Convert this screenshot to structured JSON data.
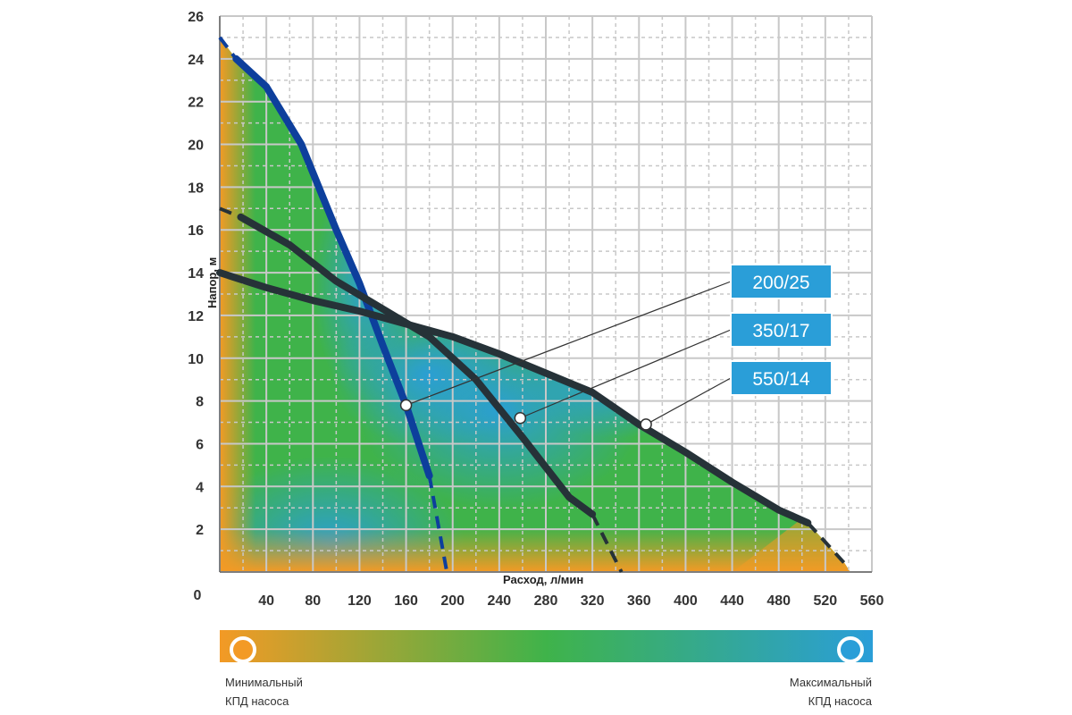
{
  "chart_data": {
    "type": "line",
    "xlabel": "Расход, л/мин",
    "ylabel": "Напор, м",
    "xlim": [
      0,
      560
    ],
    "ylim": [
      0,
      26
    ],
    "x_ticks": [
      "0",
      "40",
      "80",
      "120",
      "160",
      "200",
      "240",
      "280",
      "320",
      "360",
      "400",
      "440",
      "480",
      "520",
      "560"
    ],
    "y_ticks": [
      "2",
      "4",
      "6",
      "8",
      "10",
      "12",
      "14",
      "16",
      "18",
      "20",
      "22",
      "24",
      "26"
    ],
    "grid": true,
    "series": [
      {
        "name": "200/25",
        "color": "#0d3f9c",
        "solid": [
          [
            14,
            24
          ],
          [
            40,
            22.7
          ],
          [
            70,
            20
          ],
          [
            100,
            16
          ],
          [
            120,
            13.5
          ],
          [
            140,
            10.6
          ],
          [
            160,
            7.8
          ],
          [
            180,
            4.5
          ]
        ],
        "dashed": [
          [
            0,
            25
          ],
          [
            14,
            24
          ],
          [
            180,
            4.5
          ],
          [
            195,
            0
          ]
        ],
        "marker": [
          160,
          7.8
        ]
      },
      {
        "name": "350/17",
        "color": "#263238",
        "solid": [
          [
            18,
            16.6
          ],
          [
            60,
            15.3
          ],
          [
            100,
            13.6
          ],
          [
            140,
            12.3
          ],
          [
            180,
            11.0
          ],
          [
            220,
            9.0
          ],
          [
            260,
            6.3
          ],
          [
            300,
            3.5
          ],
          [
            320,
            2.7
          ]
        ],
        "dashed": [
          [
            0,
            17
          ],
          [
            18,
            16.6
          ],
          [
            320,
            2.7
          ],
          [
            345,
            0
          ]
        ],
        "marker": [
          258,
          7.2
        ]
      },
      {
        "name": "550/14",
        "color": "#263238",
        "solid": [
          [
            0,
            14
          ],
          [
            40,
            13.3
          ],
          [
            80,
            12.7
          ],
          [
            120,
            12.2
          ],
          [
            160,
            11.6
          ],
          [
            200,
            11.0
          ],
          [
            240,
            10.2
          ],
          [
            280,
            9.3
          ],
          [
            320,
            8.4
          ],
          [
            360,
            6.9
          ],
          [
            400,
            5.6
          ],
          [
            440,
            4.2
          ],
          [
            480,
            2.9
          ],
          [
            505,
            2.3
          ]
        ],
        "dashed": [
          [
            505,
            2.3
          ],
          [
            540,
            0.2
          ]
        ],
        "marker": [
          366,
          6.9
        ]
      }
    ]
  },
  "efficiency_legend": {
    "min_label": [
      "Минимальный",
      "КПД насоса"
    ],
    "max_label": [
      "Максимальный",
      "КПД насоса"
    ],
    "min_color": "#f39a25",
    "max_color": "#2a9ed8"
  },
  "colors": {
    "orange": "#f39a25",
    "green": "#3fb34a",
    "blue": "#2a9ed8",
    "badge": "#2a9ed8",
    "grid": "#c8c8c8"
  }
}
